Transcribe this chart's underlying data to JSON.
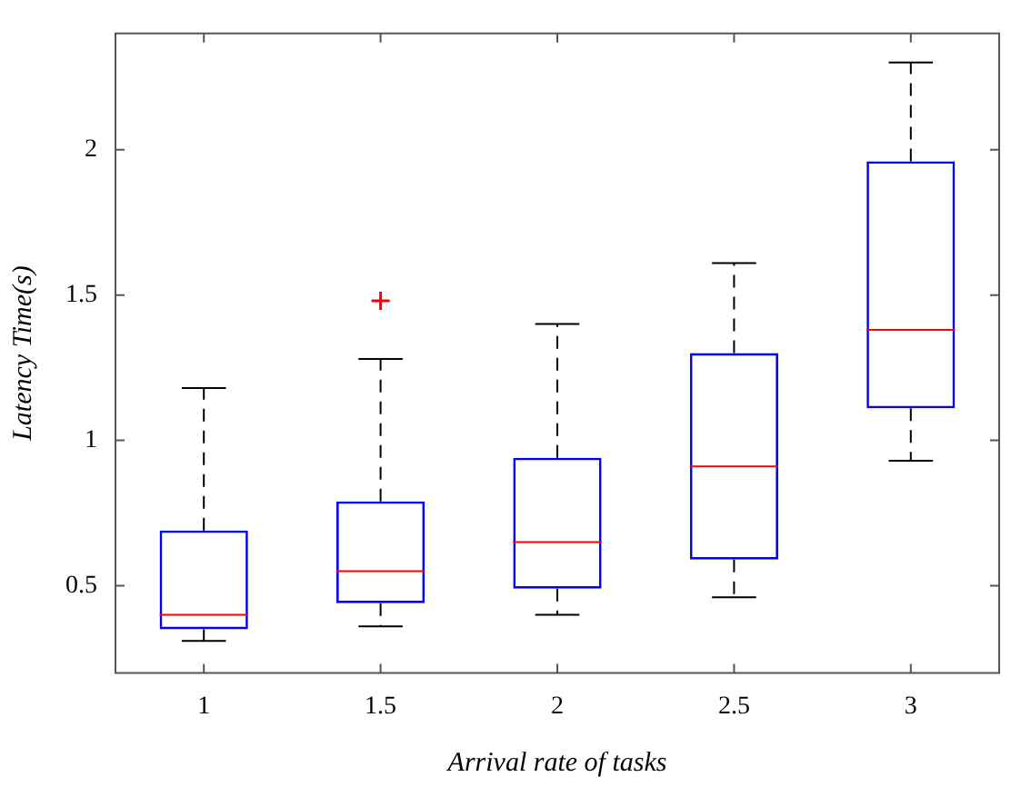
{
  "chart_data": {
    "type": "box",
    "xlabel": "Arrival rate of tasks",
    "ylabel": "Latency Time(s)",
    "categories": [
      "1",
      "1.5",
      "2",
      "2.5",
      "3"
    ],
    "color": "#0000ff",
    "boxes": [
      {
        "low": 0.31,
        "q1": 0.35,
        "median": 0.4,
        "q3": 0.69,
        "high": 1.18
      },
      {
        "low": 0.36,
        "q1": 0.44,
        "median": 0.55,
        "q3": 0.79,
        "high": 1.28,
        "outliers": [
          1.48
        ]
      },
      {
        "low": 0.4,
        "q1": 0.49,
        "median": 0.65,
        "q3": 0.94,
        "high": 1.4
      },
      {
        "low": 0.46,
        "q1": 0.59,
        "median": 0.91,
        "q3": 1.3,
        "high": 1.61
      },
      {
        "low": 0.93,
        "q1": 1.11,
        "median": 1.38,
        "q3": 1.96,
        "high": 2.3
      }
    ],
    "ylim": [
      0.2,
      2.4
    ],
    "yticks": [
      0.5,
      1,
      1.5,
      2
    ],
    "grid": false,
    "legend": false
  }
}
